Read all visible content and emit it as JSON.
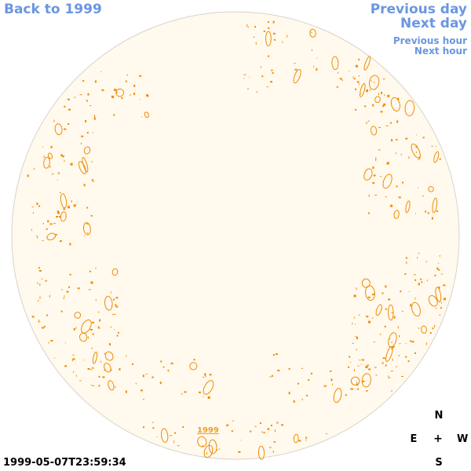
{
  "nav": {
    "back_label": "Back to 1999",
    "prev_day_label": "Previous day",
    "next_day_label": "Next day",
    "prev_hour_label": "Previous hour",
    "next_hour_label": "Next hour"
  },
  "timestamp": "1999-05-07T23:59:34",
  "year_label": "1999",
  "compass": {
    "north": "N",
    "south": "S",
    "east": "E",
    "west": "W",
    "center": "+"
  },
  "colors": {
    "link": "#6b96e0",
    "disk_fill": "#fff9ee",
    "disk_stroke": "#d9d4c8",
    "contour": "#f08c00",
    "year_link": "#f0a020"
  }
}
